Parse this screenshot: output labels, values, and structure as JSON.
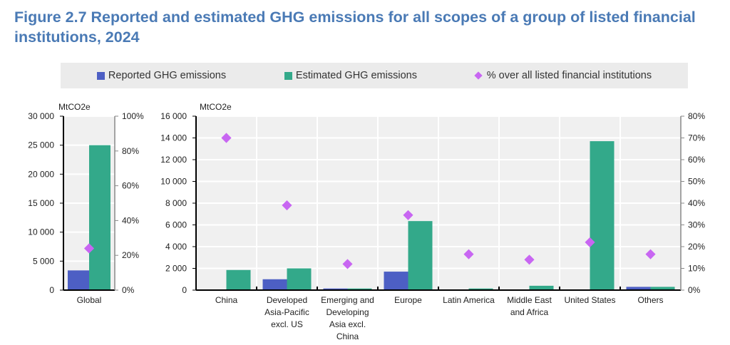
{
  "title": "Figure 2.7 Reported and estimated GHG emissions for all scopes of a group of listed financial institutions, 2024",
  "colors": {
    "reported": "#4d5fc4",
    "estimated": "#33a98a",
    "share": "#c866f2",
    "title": "#4a7ab5",
    "plot_bg": "#f0f0f0"
  },
  "legend": {
    "reported": "Reported GHG emissions",
    "estimated": "Estimated GHG emissions",
    "share": "% over all listed financial institutions"
  },
  "chart_data": [
    {
      "type": "bar",
      "ylabel": "MtCO2e",
      "ylim": [
        0,
        30000
      ],
      "yticks": [
        "0",
        "5 000",
        "10 000",
        "15 000",
        "20 000",
        "25 000",
        "30 000"
      ],
      "y2lim": [
        0,
        100
      ],
      "y2ticks": [
        "0%",
        "20%",
        "40%",
        "60%",
        "80%",
        "100%"
      ],
      "categories": [
        "Global"
      ],
      "series": [
        {
          "name": "Reported GHG emissions",
          "values": [
            3400
          ]
        },
        {
          "name": "Estimated GHG emissions",
          "values": [
            25000
          ]
        },
        {
          "name": "% over all listed financial institutions",
          "axis": "right",
          "type": "scatter",
          "values": [
            24
          ]
        }
      ],
      "grid": true
    },
    {
      "type": "bar",
      "ylabel": "MtCO2e",
      "ylim": [
        0,
        16000
      ],
      "yticks": [
        "0",
        "2 000",
        "4 000",
        "6 000",
        "8 000",
        "10 000",
        "12 000",
        "14 000",
        "16 000"
      ],
      "y2lim": [
        0,
        80
      ],
      "y2ticks": [
        "0%",
        "10%",
        "20%",
        "30%",
        "40%",
        "50%",
        "60%",
        "70%",
        "80%"
      ],
      "categories": [
        "China",
        "Developed Asia-Pacific excl. US",
        "Emerging and Developing Asia excl. China",
        "Europe",
        "Latin America",
        "Middle East and Africa",
        "United States",
        "Others"
      ],
      "category_lines": [
        [
          "China"
        ],
        [
          "Developed",
          "Asia-Pacific",
          "excl. US"
        ],
        [
          "Emerging and",
          "Developing",
          "Asia excl.",
          "China"
        ],
        [
          "Europe"
        ],
        [
          "Latin America"
        ],
        [
          "Middle East",
          "and Africa"
        ],
        [
          "United States"
        ],
        [
          "Others"
        ]
      ],
      "series": [
        {
          "name": "Reported GHG emissions",
          "values": [
            50,
            1000,
            150,
            1700,
            40,
            20,
            50,
            300
          ]
        },
        {
          "name": "Estimated GHG emissions",
          "values": [
            1850,
            2000,
            150,
            6350,
            150,
            400,
            13700,
            300
          ]
        },
        {
          "name": "% over all listed financial institutions",
          "axis": "right",
          "type": "scatter",
          "values": [
            70,
            39,
            12,
            34.5,
            16.5,
            14,
            22,
            16.5
          ]
        }
      ],
      "grid": true
    }
  ]
}
